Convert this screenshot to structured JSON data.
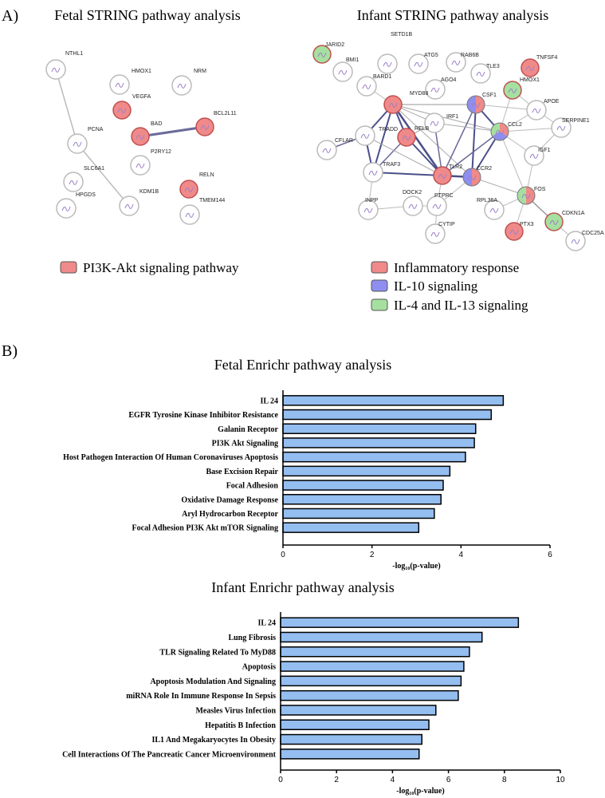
{
  "panel_a": {
    "label": "A)",
    "fetal": {
      "title": "Fetal STRING pathway analysis",
      "nodes": [
        {
          "label": "NTHL1",
          "groups": []
        },
        {
          "label": "HMOX1",
          "groups": []
        },
        {
          "label": "NRM",
          "groups": []
        },
        {
          "label": "VEGFA",
          "groups": [
            0
          ]
        },
        {
          "label": "BAD",
          "groups": [
            0
          ]
        },
        {
          "label": "BCL2L11",
          "groups": [
            0
          ]
        },
        {
          "label": "PCNA",
          "groups": []
        },
        {
          "label": "P2RY12",
          "groups": []
        },
        {
          "label": "SLC6A1",
          "groups": []
        },
        {
          "label": "HPGDS",
          "groups": []
        },
        {
          "label": "KDM1B",
          "groups": []
        },
        {
          "label": "RELN",
          "groups": [
            0
          ]
        },
        {
          "label": "TMEM144",
          "groups": []
        }
      ],
      "legend": [
        {
          "label": "PI3K-Akt signaling pathway",
          "color": "#f08a8a"
        }
      ]
    },
    "infant": {
      "title": "Infant STRING pathway analysis",
      "nodes": [
        {
          "label": "SETD1B",
          "groups": []
        },
        {
          "label": "JARID2",
          "groups": [
            2
          ]
        },
        {
          "label": "BMI1",
          "groups": []
        },
        {
          "label": "ATG5",
          "groups": []
        },
        {
          "label": "RAB6B",
          "groups": []
        },
        {
          "label": "TLE3",
          "groups": []
        },
        {
          "label": "TNFSF4",
          "groups": [
            0
          ]
        },
        {
          "label": "BARD1",
          "groups": []
        },
        {
          "label": "AGO4",
          "groups": []
        },
        {
          "label": "HMOX1",
          "groups": [
            2
          ]
        },
        {
          "label": "MYD88",
          "groups": [
            0
          ]
        },
        {
          "label": "CSF1",
          "groups": [
            0,
            1
          ]
        },
        {
          "label": "IRF1",
          "groups": []
        },
        {
          "label": "APOE",
          "groups": []
        },
        {
          "label": "TRADD",
          "groups": []
        },
        {
          "label": "CFLAR",
          "groups": []
        },
        {
          "label": "RELB",
          "groups": [
            0
          ]
        },
        {
          "label": "CCL2",
          "groups": [
            0,
            1,
            2
          ]
        },
        {
          "label": "SERPINE1",
          "groups": []
        },
        {
          "label": "IGF1",
          "groups": []
        },
        {
          "label": "TRAF3",
          "groups": []
        },
        {
          "label": "TLR2",
          "groups": [
            0
          ]
        },
        {
          "label": "CCR2",
          "groups": [
            0,
            1
          ]
        },
        {
          "label": "DOCK2",
          "groups": []
        },
        {
          "label": "INPP",
          "groups": []
        },
        {
          "label": "PTPRC",
          "groups": []
        },
        {
          "label": "FOS",
          "groups": [
            0,
            2
          ]
        },
        {
          "label": "RPL36A",
          "groups": []
        },
        {
          "label": "CDKN1A",
          "groups": [
            2
          ]
        },
        {
          "label": "CYTIP",
          "groups": []
        },
        {
          "label": "PTX3",
          "groups": [
            0
          ]
        },
        {
          "label": "CDC25A",
          "groups": []
        }
      ],
      "legend": [
        {
          "label": "Inflammatory response",
          "color": "#f08a8a"
        },
        {
          "label": "IL-10 signaling",
          "color": "#8e8ef0"
        },
        {
          "label": "IL-4 and IL-13 signaling",
          "color": "#a6e0a0"
        }
      ]
    }
  },
  "panel_b": {
    "label": "B)"
  },
  "chart_data": [
    {
      "type": "bar",
      "orientation": "horizontal",
      "title": "Fetal Enrichr pathway analysis",
      "categories": [
        "IL 24",
        "EGFR Tyrosine Kinase Inhibitor Resistance",
        "Galanin Receptor",
        "PI3K Akt Signaling",
        "Host Pathogen Interaction Of Human Coronaviruses Apoptosis",
        "Base Excision Repair",
        "Focal Adhesion",
        "Oxidative Damage Response",
        "Aryl Hydrocarbon Receptor",
        "Focal Adhesion PI3K Akt mTOR Signaling"
      ],
      "values": [
        4.95,
        4.68,
        4.33,
        4.3,
        4.1,
        3.75,
        3.6,
        3.55,
        3.4,
        3.05
      ],
      "color": "#94bdf0",
      "xlim": [
        0,
        6
      ],
      "xticks": [
        0,
        2,
        4,
        6
      ],
      "x_label": "-log₁₀(p-value)"
    },
    {
      "type": "bar",
      "orientation": "horizontal",
      "title": "Infant Enrichr pathway analysis",
      "categories": [
        "IL 24",
        "Lung Fibrosis",
        "TLR Signaling Related To MyD88",
        "Apoptosis",
        "Apoptosis Modulation And Signaling",
        "miRNA Role In Immune Response In Sepsis",
        "Measles Virus Infection",
        "Hepatitis B Infection",
        "IL1 And Megakaryocytes In Obesity",
        "Cell Interactions Of The Pancreatic Cancer Microenvironment"
      ],
      "values": [
        8.5,
        7.2,
        6.75,
        6.55,
        6.45,
        6.35,
        5.55,
        5.3,
        5.05,
        4.95
      ],
      "color": "#94bdf0",
      "xlim": [
        0,
        10
      ],
      "xticks": [
        0,
        2,
        4,
        6,
        8,
        10
      ],
      "x_label": "-log₁₀(p-value)"
    }
  ]
}
